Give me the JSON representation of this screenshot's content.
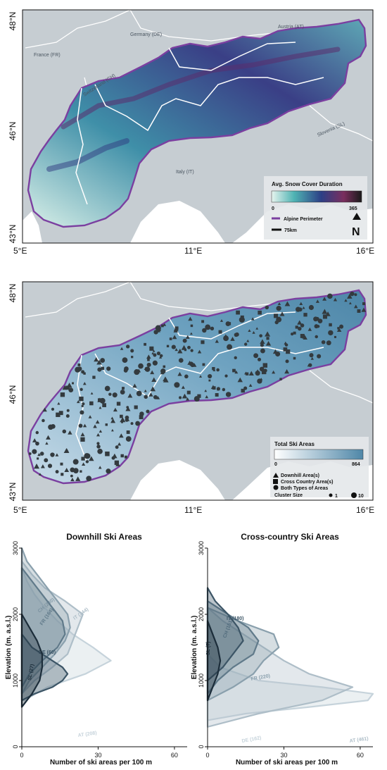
{
  "map1": {
    "lat_labels": [
      "48°N",
      "46°N",
      "43°N"
    ],
    "lon_labels": [
      "5°E",
      "11°E",
      "16°E"
    ],
    "countries": [
      "France (FR)",
      "Germany (DE)",
      "Austria (AT)",
      "Switzerland (CH)",
      "Italy (IT)",
      "Slovenia (SL)"
    ],
    "legend": {
      "title": "Avg. Snow Cover Duration",
      "min": "0",
      "max": "365",
      "perimeter": "Alpine Perimeter",
      "scale": "75km",
      "north": "N"
    },
    "colors": {
      "perimeter": "#7b3fa0",
      "sea": "#bcc6cc",
      "land": "#c8cfd3"
    }
  },
  "map2": {
    "lat_labels": [
      "48°N",
      "46°N",
      "43°N"
    ],
    "lon_labels": [
      "5°E",
      "11°E",
      "16°E"
    ],
    "legend": {
      "title": "Total Ski Areas",
      "min": "0",
      "max": "864",
      "downhill": "Downhill Area(s)",
      "cross": "Cross Country Area(s)",
      "both": "Both Types of Areas",
      "cluster": "Cluster Size",
      "size1": "1",
      "size10": "10"
    }
  },
  "chart_data": [
    {
      "type": "area",
      "title": "Downhill Ski Areas",
      "xlabel": "Number of ski areas per 100 m",
      "ylabel": "Elevation (m. a.s.l.)",
      "xlim": [
        0,
        65
      ],
      "ylim": [
        0,
        3000
      ],
      "xticks": [
        "0",
        "30",
        "60"
      ],
      "yticks": [
        "0",
        "1000",
        "2000",
        "3000"
      ],
      "series": [
        {
          "name": "AT (208)",
          "color": "#c6d3db",
          "y": [
            700,
            900,
            1100,
            1300,
            1500,
            1700,
            1900,
            2100,
            2300,
            2500,
            2700
          ],
          "x": [
            1,
            10,
            25,
            35,
            28,
            20,
            14,
            9,
            5,
            2,
            0
          ]
        },
        {
          "name": "IT (244)",
          "color": "#aebec8",
          "y": [
            800,
            1000,
            1200,
            1400,
            1600,
            1800,
            2000,
            2200,
            2400,
            2600,
            2800
          ],
          "x": [
            0,
            5,
            12,
            18,
            20,
            22,
            24,
            17,
            9,
            4,
            0
          ]
        },
        {
          "name": "CH (240)",
          "color": "#8aa0ad",
          "y": [
            800,
            1000,
            1200,
            1400,
            1600,
            1800,
            2000,
            2200,
            2400,
            2600,
            2800,
            3000
          ],
          "x": [
            0,
            3,
            8,
            13,
            17,
            19,
            18,
            14,
            10,
            6,
            2,
            0
          ]
        },
        {
          "name": "FR (164)",
          "color": "#607a8a",
          "y": [
            900,
            1100,
            1300,
            1500,
            1700,
            1900,
            2100,
            2300,
            2500,
            2700
          ],
          "x": [
            0,
            3,
            8,
            14,
            17,
            16,
            12,
            8,
            4,
            0
          ]
        },
        {
          "name": "DE (60)",
          "color": "#3c5566",
          "y": [
            700,
            800,
            900,
            1000,
            1100,
            1200,
            1300,
            1400,
            1500,
            1600,
            1700
          ],
          "x": [
            0,
            5,
            12,
            16,
            18,
            16,
            12,
            8,
            4,
            2,
            0
          ]
        },
        {
          "name": "SL (27)",
          "color": "#1c2d3a",
          "y": [
            600,
            800,
            1000,
            1200,
            1400,
            1600,
            1800,
            2000
          ],
          "x": [
            0,
            4,
            7,
            8,
            8,
            6,
            3,
            0
          ]
        }
      ]
    },
    {
      "type": "area",
      "title": "Cross-country Ski Areas",
      "xlabel": "Number of ski areas per 100 m",
      "ylabel": "Elevation (m. a.s.l.)",
      "xlim": [
        0,
        65
      ],
      "ylim": [
        0,
        3000
      ],
      "xticks": [
        "0",
        "30",
        "60"
      ],
      "yticks": [
        "0",
        "1000",
        "2000",
        "3000"
      ],
      "series": [
        {
          "name": "DE (162)",
          "color": "#c6d3db",
          "y": [
            400,
            500,
            600,
            700,
            800,
            900,
            1000,
            1200,
            1400
          ],
          "x": [
            0,
            15,
            40,
            63,
            65,
            45,
            20,
            5,
            0
          ]
        },
        {
          "name": "AT (461)",
          "color": "#aebec8",
          "y": [
            300,
            500,
            700,
            900,
            1100,
            1300,
            1500,
            1700,
            1900,
            2100
          ],
          "x": [
            0,
            20,
            45,
            57,
            40,
            30,
            22,
            14,
            6,
            0
          ]
        },
        {
          "name": "FR (220)",
          "color": "#8aa0ad",
          "y": [
            700,
            900,
            1100,
            1300,
            1500,
            1700,
            1900,
            2100
          ],
          "x": [
            0,
            10,
            18,
            22,
            28,
            26,
            12,
            0
          ]
        },
        {
          "name": "CH (151)",
          "color": "#607a8a",
          "y": [
            800,
            1000,
            1200,
            1400,
            1600,
            1800,
            2000,
            2200
          ],
          "x": [
            0,
            4,
            10,
            18,
            20,
            16,
            8,
            0
          ]
        },
        {
          "name": "IT (180)",
          "color": "#3c5566",
          "y": [
            1000,
            1200,
            1400,
            1600,
            1800,
            2000,
            2200,
            2400
          ],
          "x": [
            0,
            6,
            10,
            14,
            12,
            8,
            3,
            0
          ]
        },
        {
          "name": "SL (7)",
          "color": "#1c2d3a",
          "y": [
            700,
            900,
            1100,
            1300,
            1500,
            1700,
            1900
          ],
          "x": [
            0,
            2,
            4,
            5,
            4,
            2,
            0
          ]
        }
      ]
    }
  ]
}
